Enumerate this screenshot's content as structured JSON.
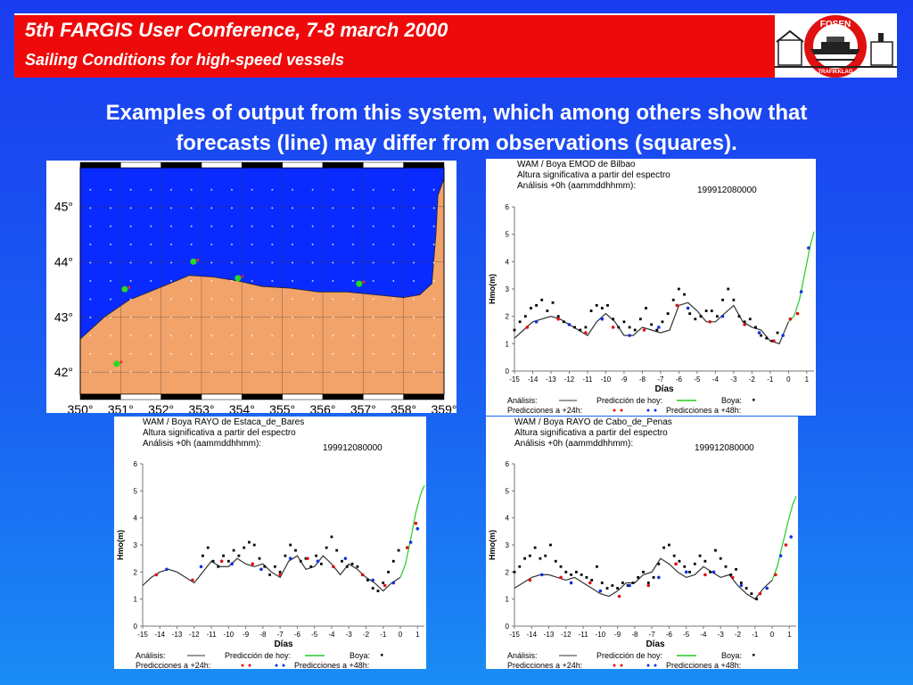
{
  "header": {
    "title": "5th FARGIS User Conference, 7-8 march 2000",
    "subtitle": "Sailing Conditions for high-speed vessels",
    "logo_text": {
      "top": "FOSEN",
      "bottom": "TRAFIKKLAG"
    }
  },
  "caption": {
    "line1": "Examples of output from this system, which among others show that",
    "line2": "forecasts (line) may differ from observations (squares)."
  },
  "map": {
    "lat_labels": [
      "45°",
      "44°",
      "43°",
      "42°"
    ],
    "lon_labels": [
      "350°",
      "351°",
      "352°",
      "353°",
      "354°",
      "355°",
      "356°",
      "357°",
      "358°",
      "359°"
    ],
    "colors": {
      "sea": "#0a2bff",
      "land": "#f2a36a",
      "buoy": "#22dd22",
      "point": "#ff2222"
    },
    "buoys": [
      {
        "lon": 351.1,
        "lat": 43.5
      },
      {
        "lon": 352.8,
        "lat": 44.0
      },
      {
        "lon": 353.9,
        "lat": 43.7
      },
      {
        "lon": 356.9,
        "lat": 43.6
      },
      {
        "lon": 350.9,
        "lat": 42.15
      }
    ]
  },
  "chart_data": [
    {
      "type": "line",
      "header1": "WAM / Boya EMOD de Bilbao",
      "header2": "Altura significativa a partir del espectro",
      "header3": "Análisis +0h    (aammddhhmm):",
      "date": "199912080000",
      "xlabel": "Días",
      "ylabel": "Hmo(m)",
      "xlim": [
        -15,
        1.4
      ],
      "ylim": [
        0,
        6
      ],
      "xticks": [
        "-15",
        "-14",
        "-13",
        "-12",
        "-11",
        "-10",
        "-9",
        "-8",
        "-7",
        "-6",
        "-5",
        "-4",
        "-3",
        "-2",
        "-1",
        "0",
        "1"
      ],
      "yticks": [
        "0",
        "1",
        "2",
        "3",
        "4",
        "5",
        "6"
      ],
      "legend": {
        "analisis": "Análisis:",
        "hoy": "Predicción de hoy:",
        "boya": "Boya:",
        "p24": "Predicciones a +24h:",
        "p48": "Predicciones a +48h:"
      },
      "series": [
        {
          "kind": "analysis",
          "x": [
            -15,
            -14.5,
            -14,
            -13.5,
            -13,
            -12.5,
            -12,
            -11.5,
            -11,
            -10.5,
            -10,
            -9.5,
            -9,
            -8.5,
            -8,
            -7.5,
            -7,
            -6.5,
            -6,
            -5.5,
            -5,
            -4.5,
            -4,
            -3.5,
            -3,
            -2.5,
            -2,
            -1.5,
            -1,
            -0.5,
            0
          ],
          "y": [
            1.2,
            1.5,
            1.8,
            1.9,
            2.0,
            1.9,
            1.7,
            1.5,
            1.3,
            1.8,
            2.1,
            1.8,
            1.3,
            1.3,
            1.6,
            1.5,
            1.4,
            1.5,
            2.4,
            2.5,
            2.2,
            1.8,
            1.8,
            2.1,
            2.4,
            1.8,
            1.6,
            1.5,
            1.1,
            1.0,
            1.8
          ]
        },
        {
          "kind": "forecast",
          "x": [
            0,
            0.3,
            0.6,
            0.9,
            1.2,
            1.4
          ],
          "y": [
            1.8,
            2.0,
            2.6,
            3.6,
            4.6,
            5.1
          ]
        },
        {
          "kind": "obs",
          "x": [
            -15,
            -14.7,
            -14.4,
            -14.1,
            -13.8,
            -13.5,
            -13.2,
            -12.9,
            -12.6,
            -12.3,
            -12,
            -11.7,
            -11.4,
            -11.1,
            -10.8,
            -10.5,
            -10.2,
            -9.9,
            -9.6,
            -9.3,
            -9,
            -8.7,
            -8.4,
            -8.1,
            -7.8,
            -7.5,
            -7.2,
            -6.9,
            -6.6,
            -6.3,
            -6,
            -5.7,
            -5.4,
            -5.1,
            -4.8,
            -4.5,
            -4.2,
            -3.9,
            -3.6,
            -3.3,
            -3,
            -2.7,
            -2.4,
            -2.1,
            -1.8,
            -1.5,
            -1.2,
            -0.9,
            -0.6
          ],
          "y": [
            1.5,
            1.8,
            2.0,
            2.3,
            2.4,
            2.6,
            2.2,
            2.5,
            2.0,
            1.8,
            1.7,
            1.6,
            1.5,
            1.6,
            2.2,
            2.4,
            2.3,
            2.4,
            1.9,
            1.6,
            1.8,
            1.6,
            1.5,
            1.9,
            2.3,
            1.7,
            1.5,
            1.8,
            2.1,
            2.6,
            3.0,
            2.8,
            2.1,
            1.9,
            2.0,
            2.2,
            2.2,
            2.0,
            2.6,
            3.0,
            2.6,
            2.0,
            1.8,
            1.9,
            1.6,
            1.3,
            1.2,
            1.1,
            1.4
          ]
        },
        {
          "kind": "p24",
          "x": [
            -14.3,
            -12.6,
            -11.1,
            -9.6,
            -7.9,
            -6.1,
            -4.3,
            -2.4,
            -0.8,
            0.1,
            0.5
          ],
          "y": [
            1.6,
            1.9,
            1.4,
            1.6,
            1.5,
            2.4,
            1.8,
            1.7,
            1.1,
            1.9,
            2.1
          ]
        },
        {
          "kind": "p48",
          "x": [
            -13.8,
            -12.0,
            -10.2,
            -8.7,
            -7.1,
            -5.5,
            -3.6,
            -1.6,
            -0.3,
            0.7,
            1.1
          ],
          "y": [
            1.8,
            1.7,
            1.9,
            1.3,
            1.6,
            2.3,
            2.0,
            1.4,
            1.3,
            2.9,
            4.5
          ]
        }
      ]
    },
    {
      "type": "line",
      "header1": "WAM / Boya RAYO de Estaca_de_Bares",
      "header2": "Altura significativa a partir del espectro",
      "header3": "Análisis +0h    (aammddhhmm):",
      "date": "199912080000",
      "xlabel": "Días",
      "ylabel": "Hmo(m)",
      "xlim": [
        -15,
        1.4
      ],
      "ylim": [
        0,
        6
      ],
      "xticks": [
        "-15",
        "-14",
        "-13",
        "-12",
        "-11",
        "-10",
        "-9",
        "-8",
        "-7",
        "-6",
        "-5",
        "-4",
        "-3",
        "-2",
        "-1",
        "0",
        "1"
      ],
      "yticks": [
        "0",
        "1",
        "2",
        "3",
        "4",
        "5",
        "6"
      ],
      "legend": {
        "analisis": "Análisis:",
        "hoy": "Predicción de hoy:",
        "boya": "Boya:",
        "p24": "Predicciones a +24h:",
        "p48": "Predicciones a +48h:"
      },
      "series": [
        {
          "kind": "analysis",
          "x": [
            -15,
            -14.5,
            -14,
            -13.5,
            -13,
            -12.5,
            -12,
            -11.5,
            -11,
            -10.5,
            -10,
            -9.5,
            -9,
            -8.5,
            -8,
            -7.5,
            -7,
            -6.5,
            -6,
            -5.5,
            -5,
            -4.5,
            -4,
            -3.5,
            -3,
            -2.5,
            -2,
            -1.5,
            -1,
            -0.5,
            0
          ],
          "y": [
            1.5,
            1.8,
            2.0,
            2.1,
            2.0,
            1.8,
            1.6,
            2.0,
            2.4,
            2.2,
            2.2,
            2.5,
            2.3,
            2.2,
            2.3,
            2.0,
            1.8,
            2.4,
            2.6,
            2.1,
            2.2,
            2.6,
            2.3,
            1.9,
            2.3,
            2.1,
            1.8,
            1.6,
            1.3,
            1.6,
            1.8
          ]
        },
        {
          "kind": "forecast",
          "x": [
            0,
            0.3,
            0.6,
            0.9,
            1.2,
            1.4
          ],
          "y": [
            1.8,
            2.3,
            3.2,
            4.2,
            4.9,
            5.2
          ]
        },
        {
          "kind": "obs",
          "x": [
            -11.5,
            -11.2,
            -10.9,
            -10.6,
            -10.3,
            -10,
            -9.7,
            -9.4,
            -9.1,
            -8.8,
            -8.5,
            -8.2,
            -7.9,
            -7.6,
            -7.3,
            -7,
            -6.7,
            -6.4,
            -6.1,
            -5.8,
            -5.5,
            -5.2,
            -4.9,
            -4.6,
            -4.3,
            -4,
            -3.7,
            -3.4,
            -3.1,
            -2.8,
            -2.5,
            -2.2,
            -1.9,
            -1.6,
            -1.3,
            -1,
            -0.7,
            -0.4,
            -0.1
          ],
          "y": [
            2.6,
            2.9,
            2.4,
            2.2,
            2.6,
            2.4,
            2.8,
            2.6,
            2.9,
            3.1,
            3.0,
            2.5,
            2.2,
            1.9,
            2.2,
            2.0,
            2.6,
            3.0,
            2.8,
            2.4,
            2.5,
            2.2,
            2.6,
            2.3,
            2.9,
            3.3,
            2.8,
            2.4,
            2.2,
            2.3,
            2.2,
            1.9,
            1.7,
            1.4,
            1.3,
            1.6,
            2.0,
            2.4,
            2.8
          ]
        },
        {
          "kind": "p24",
          "x": [
            -14.2,
            -12.1,
            -10.4,
            -8.6,
            -7.0,
            -5.4,
            -3.9,
            -2.2,
            -0.9,
            0.4,
            0.9
          ],
          "y": [
            1.9,
            1.7,
            2.4,
            2.3,
            1.9,
            2.5,
            2.2,
            1.9,
            1.5,
            2.9,
            3.8
          ]
        },
        {
          "kind": "p48",
          "x": [
            -13.6,
            -11.6,
            -9.8,
            -8.1,
            -6.4,
            -4.8,
            -3.2,
            -1.6,
            -0.4,
            0.6,
            1.0
          ],
          "y": [
            2.1,
            2.2,
            2.3,
            2.1,
            2.5,
            2.4,
            2.5,
            1.7,
            1.6,
            3.1,
            3.6
          ]
        }
      ]
    },
    {
      "type": "line",
      "header1": "WAM / Boya RAYO de Cabo_de_Penas",
      "header2": "Altura significativa a partir del espectro",
      "header3": "Análisis +0h    (aammddhhmm):",
      "date": "199912080000",
      "xlabel": "Días",
      "ylabel": "Hmo(m)",
      "xlim": [
        -15,
        1.4
      ],
      "ylim": [
        0,
        6
      ],
      "xticks": [
        "-15",
        "-14",
        "-13",
        "-12",
        "-11",
        "-10",
        "-9",
        "-8",
        "-7",
        "-6",
        "-5",
        "-4",
        "-3",
        "-2",
        "-1",
        "0",
        "1"
      ],
      "yticks": [
        "0",
        "1",
        "2",
        "3",
        "4",
        "5",
        "6"
      ],
      "legend": {
        "analisis": "Análisis:",
        "hoy": "Predicción de hoy:",
        "boya": "Boya:",
        "p24": "Predicciones a +24h:",
        "p48": "Predicciones a +48h:"
      },
      "series": [
        {
          "kind": "analysis",
          "x": [
            -15,
            -14.5,
            -14,
            -13.5,
            -13,
            -12.5,
            -12,
            -11.5,
            -11,
            -10.5,
            -10,
            -9.5,
            -9,
            -8.5,
            -8,
            -7.5,
            -7,
            -6.5,
            -6,
            -5.5,
            -5,
            -4.5,
            -4,
            -3.5,
            -3,
            -2.5,
            -2,
            -1.5,
            -1,
            -0.5,
            0
          ],
          "y": [
            1.4,
            1.6,
            1.8,
            1.9,
            1.9,
            1.8,
            1.7,
            1.8,
            1.6,
            1.4,
            1.2,
            1.1,
            1.3,
            1.6,
            1.6,
            1.9,
            2.0,
            2.5,
            2.3,
            2.0,
            1.8,
            1.9,
            2.2,
            2.0,
            1.8,
            1.9,
            1.5,
            1.2,
            1.0,
            1.4,
            1.7
          ]
        },
        {
          "kind": "forecast",
          "x": [
            0,
            0.3,
            0.6,
            0.9,
            1.2,
            1.4
          ],
          "y": [
            1.7,
            2.2,
            3.0,
            3.8,
            4.5,
            4.8
          ]
        },
        {
          "kind": "obs",
          "x": [
            -15,
            -14.7,
            -14.4,
            -14.1,
            -13.8,
            -13.5,
            -13.2,
            -12.9,
            -12.6,
            -12.3,
            -12,
            -11.7,
            -11.4,
            -11.1,
            -10.8,
            -10.5,
            -10.2,
            -9.9,
            -9.6,
            -9.3,
            -9,
            -8.7,
            -8.4,
            -8.1,
            -7.8,
            -7.5,
            -7.2,
            -6.9,
            -6.6,
            -6.3,
            -6,
            -5.7,
            -5.4,
            -5.1,
            -4.8,
            -4.5,
            -4.2,
            -3.9,
            -3.6,
            -3.3,
            -3,
            -2.7,
            -2.4,
            -2.1,
            -1.8,
            -1.5,
            -1.2,
            -0.9
          ],
          "y": [
            2.0,
            2.2,
            2.5,
            2.6,
            2.9,
            2.5,
            2.6,
            3.0,
            2.4,
            2.2,
            2.0,
            1.9,
            2.0,
            1.9,
            1.8,
            1.7,
            2.2,
            1.6,
            1.4,
            1.5,
            1.4,
            1.6,
            1.5,
            1.6,
            1.8,
            2.0,
            1.6,
            1.8,
            2.3,
            2.9,
            3.0,
            2.6,
            2.4,
            2.2,
            2.0,
            2.3,
            2.6,
            2.4,
            2.0,
            2.8,
            2.5,
            2.2,
            1.9,
            2.1,
            1.6,
            1.4,
            1.2,
            1.0
          ]
        },
        {
          "kind": "p24",
          "x": [
            -14.1,
            -12.3,
            -10.6,
            -8.9,
            -7.2,
            -5.6,
            -3.9,
            -2.3,
            -0.7,
            0.2,
            0.8
          ],
          "y": [
            1.7,
            1.8,
            1.6,
            1.1,
            1.5,
            2.3,
            1.9,
            1.8,
            1.2,
            1.9,
            3.0
          ]
        },
        {
          "kind": "p48",
          "x": [
            -13.4,
            -11.7,
            -10.0,
            -8.3,
            -6.6,
            -5.0,
            -3.4,
            -1.8,
            -0.3,
            0.5,
            1.1
          ],
          "y": [
            1.9,
            1.6,
            1.3,
            1.5,
            1.8,
            2.0,
            2.0,
            1.5,
            1.4,
            2.6,
            3.3
          ]
        }
      ]
    }
  ]
}
